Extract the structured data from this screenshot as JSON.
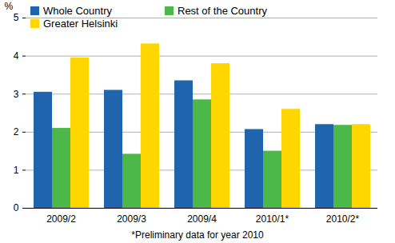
{
  "chart_data": {
    "type": "bar",
    "caption": "*Preliminary data for year 2010",
    "y_label": "%",
    "categories": [
      "2009/2",
      "2009/3",
      "2009/4",
      "2010/1*",
      "2010/2*"
    ],
    "series": [
      {
        "name": "Whole Country",
        "color": "#1f64ad",
        "values": [
          3.05,
          3.1,
          3.35,
          2.07,
          2.2
        ]
      },
      {
        "name": "Rest of the Country",
        "color": "#4cb848",
        "values": [
          2.1,
          1.42,
          2.85,
          1.5,
          2.18
        ]
      },
      {
        "name": "Greater Helsinki",
        "color": "#ffd600",
        "values": [
          3.95,
          4.32,
          3.8,
          2.6,
          2.2
        ]
      }
    ],
    "ylim": [
      0,
      5
    ],
    "yticks": [
      0,
      1,
      2,
      3,
      4,
      5
    ],
    "grid": true,
    "legend": "upper left"
  }
}
